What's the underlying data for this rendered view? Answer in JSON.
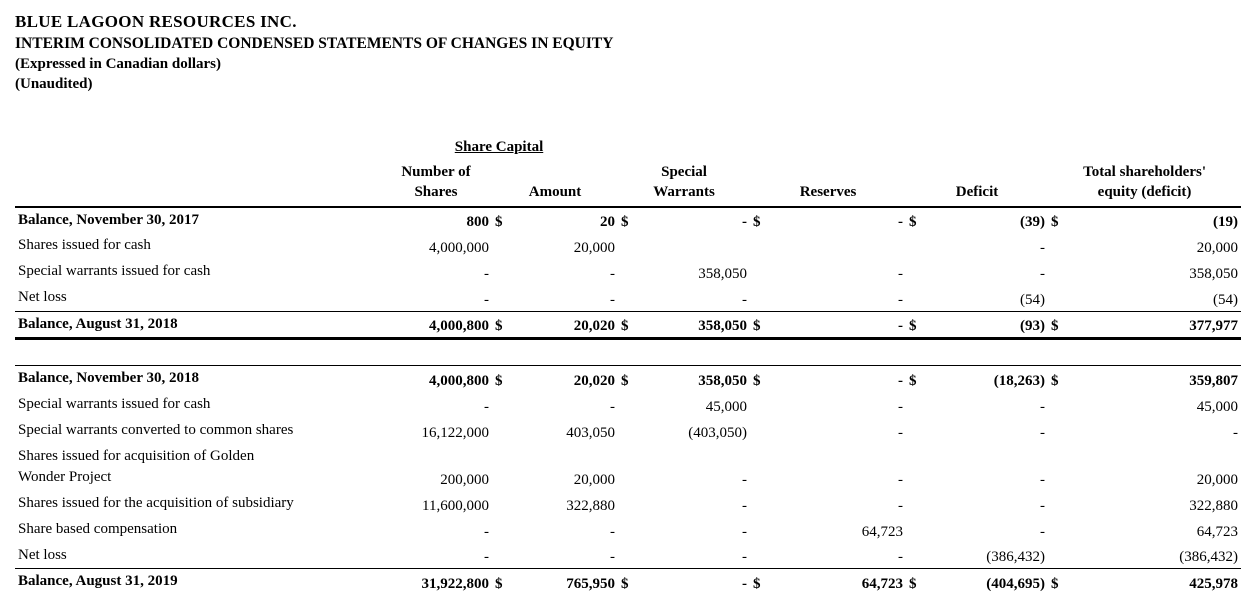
{
  "header": {
    "company": "BLUE LAGOON RESOURCES INC.",
    "title": "INTERIM CONSOLIDATED CONDENSED STATEMENTS OF CHANGES IN EQUITY",
    "expressed_in": "(Expressed in Canadian dollars)",
    "unaudited": "(Unaudited)"
  },
  "table": {
    "group_header": "Share Capital",
    "columns": [
      {
        "line1": "Number of",
        "line2": "Shares"
      },
      {
        "line1": "",
        "line2": "Amount"
      },
      {
        "line1": "Special",
        "line2": "Warrants"
      },
      {
        "line1": "",
        "line2": "Reserves"
      },
      {
        "line1": "",
        "line2": "Deficit"
      },
      {
        "line1": "Total shareholders'",
        "line2": "equity (deficit)"
      }
    ],
    "rows": [
      {
        "label": "Balance, November 30, 2017",
        "bold": true,
        "cells": [
          [
            "",
            "800"
          ],
          [
            "$",
            "20"
          ],
          [
            "$",
            "-"
          ],
          [
            "$",
            "-"
          ],
          [
            "$",
            "(39)"
          ],
          [
            "$",
            "(19)"
          ]
        ]
      },
      {
        "label": "Shares issued for cash",
        "cells": [
          [
            "",
            "4,000,000"
          ],
          [
            "",
            "20,000"
          ],
          [
            "",
            ""
          ],
          [
            "",
            ""
          ],
          [
            "",
            "-"
          ],
          [
            "",
            "20,000"
          ]
        ]
      },
      {
        "label": "Special warrants issued for cash",
        "cells": [
          [
            "",
            "-"
          ],
          [
            "",
            "-"
          ],
          [
            "",
            "358,050"
          ],
          [
            "",
            "-"
          ],
          [
            "",
            "-"
          ],
          [
            "",
            "358,050"
          ]
        ]
      },
      {
        "label": "Net loss",
        "border_bottom": "thin",
        "cells": [
          [
            "",
            "-"
          ],
          [
            "",
            "-"
          ],
          [
            "",
            "-"
          ],
          [
            "",
            "-"
          ],
          [
            "",
            "(54)"
          ],
          [
            "",
            "(54)"
          ]
        ]
      },
      {
        "label": "Balance, August 31, 2018",
        "bold": true,
        "border_bottom": "thick",
        "cells": [
          [
            "",
            "4,000,800"
          ],
          [
            "$",
            "20,020"
          ],
          [
            "$",
            "358,050"
          ],
          [
            "$",
            "-"
          ],
          [
            "$",
            "(93)"
          ],
          [
            "$",
            "377,977"
          ]
        ]
      },
      {
        "spacer": true
      },
      {
        "label": "Balance, November 30, 2018",
        "bold": true,
        "border_top": "thin",
        "cells": [
          [
            "",
            "4,000,800"
          ],
          [
            "$",
            "20,020"
          ],
          [
            "$",
            "358,050"
          ],
          [
            "$",
            "-"
          ],
          [
            "$",
            "(18,263)"
          ],
          [
            "$",
            "359,807"
          ]
        ]
      },
      {
        "label": "Special warrants issued for cash",
        "cells": [
          [
            "",
            "-"
          ],
          [
            "",
            "-"
          ],
          [
            "",
            "45,000"
          ],
          [
            "",
            "-"
          ],
          [
            "",
            "-"
          ],
          [
            "",
            "45,000"
          ]
        ]
      },
      {
        "label": "Special warrants converted to common shares",
        "cells": [
          [
            "",
            "16,122,000"
          ],
          [
            "",
            "403,050"
          ],
          [
            "",
            "(403,050)"
          ],
          [
            "",
            "-"
          ],
          [
            "",
            "-"
          ],
          [
            "",
            "-"
          ]
        ]
      },
      {
        "label": "Shares issued for acquisition of Golden",
        "label2": "Wonder Project",
        "cells": [
          [
            "",
            "200,000"
          ],
          [
            "",
            "20,000"
          ],
          [
            "",
            "-"
          ],
          [
            "",
            "-"
          ],
          [
            "",
            "-"
          ],
          [
            "",
            "20,000"
          ]
        ]
      },
      {
        "label": "Shares issued for the acquisition of subsidiary",
        "cells": [
          [
            "",
            "11,600,000"
          ],
          [
            "",
            "322,880"
          ],
          [
            "",
            "-"
          ],
          [
            "",
            "-"
          ],
          [
            "",
            "-"
          ],
          [
            "",
            "322,880"
          ]
        ]
      },
      {
        "label": "Share based compensation",
        "cells": [
          [
            "",
            "-"
          ],
          [
            "",
            "-"
          ],
          [
            "",
            "-"
          ],
          [
            "",
            "64,723"
          ],
          [
            "",
            "-"
          ],
          [
            "",
            "64,723"
          ]
        ]
      },
      {
        "label": "Net loss",
        "border_bottom": "thin",
        "cells": [
          [
            "",
            "-"
          ],
          [
            "",
            "-"
          ],
          [
            "",
            "-"
          ],
          [
            "",
            "-"
          ],
          [
            "",
            "(386,432)"
          ],
          [
            "",
            "(386,432)"
          ]
        ]
      },
      {
        "label": "Balance, August 31, 2019",
        "bold": true,
        "border_bottom": "thick",
        "cells": [
          [
            "",
            "31,922,800"
          ],
          [
            "$",
            "765,950"
          ],
          [
            "$",
            "-"
          ],
          [
            "$",
            "64,723"
          ],
          [
            "$",
            "(404,695)"
          ],
          [
            "$",
            "425,978"
          ]
        ]
      }
    ]
  }
}
